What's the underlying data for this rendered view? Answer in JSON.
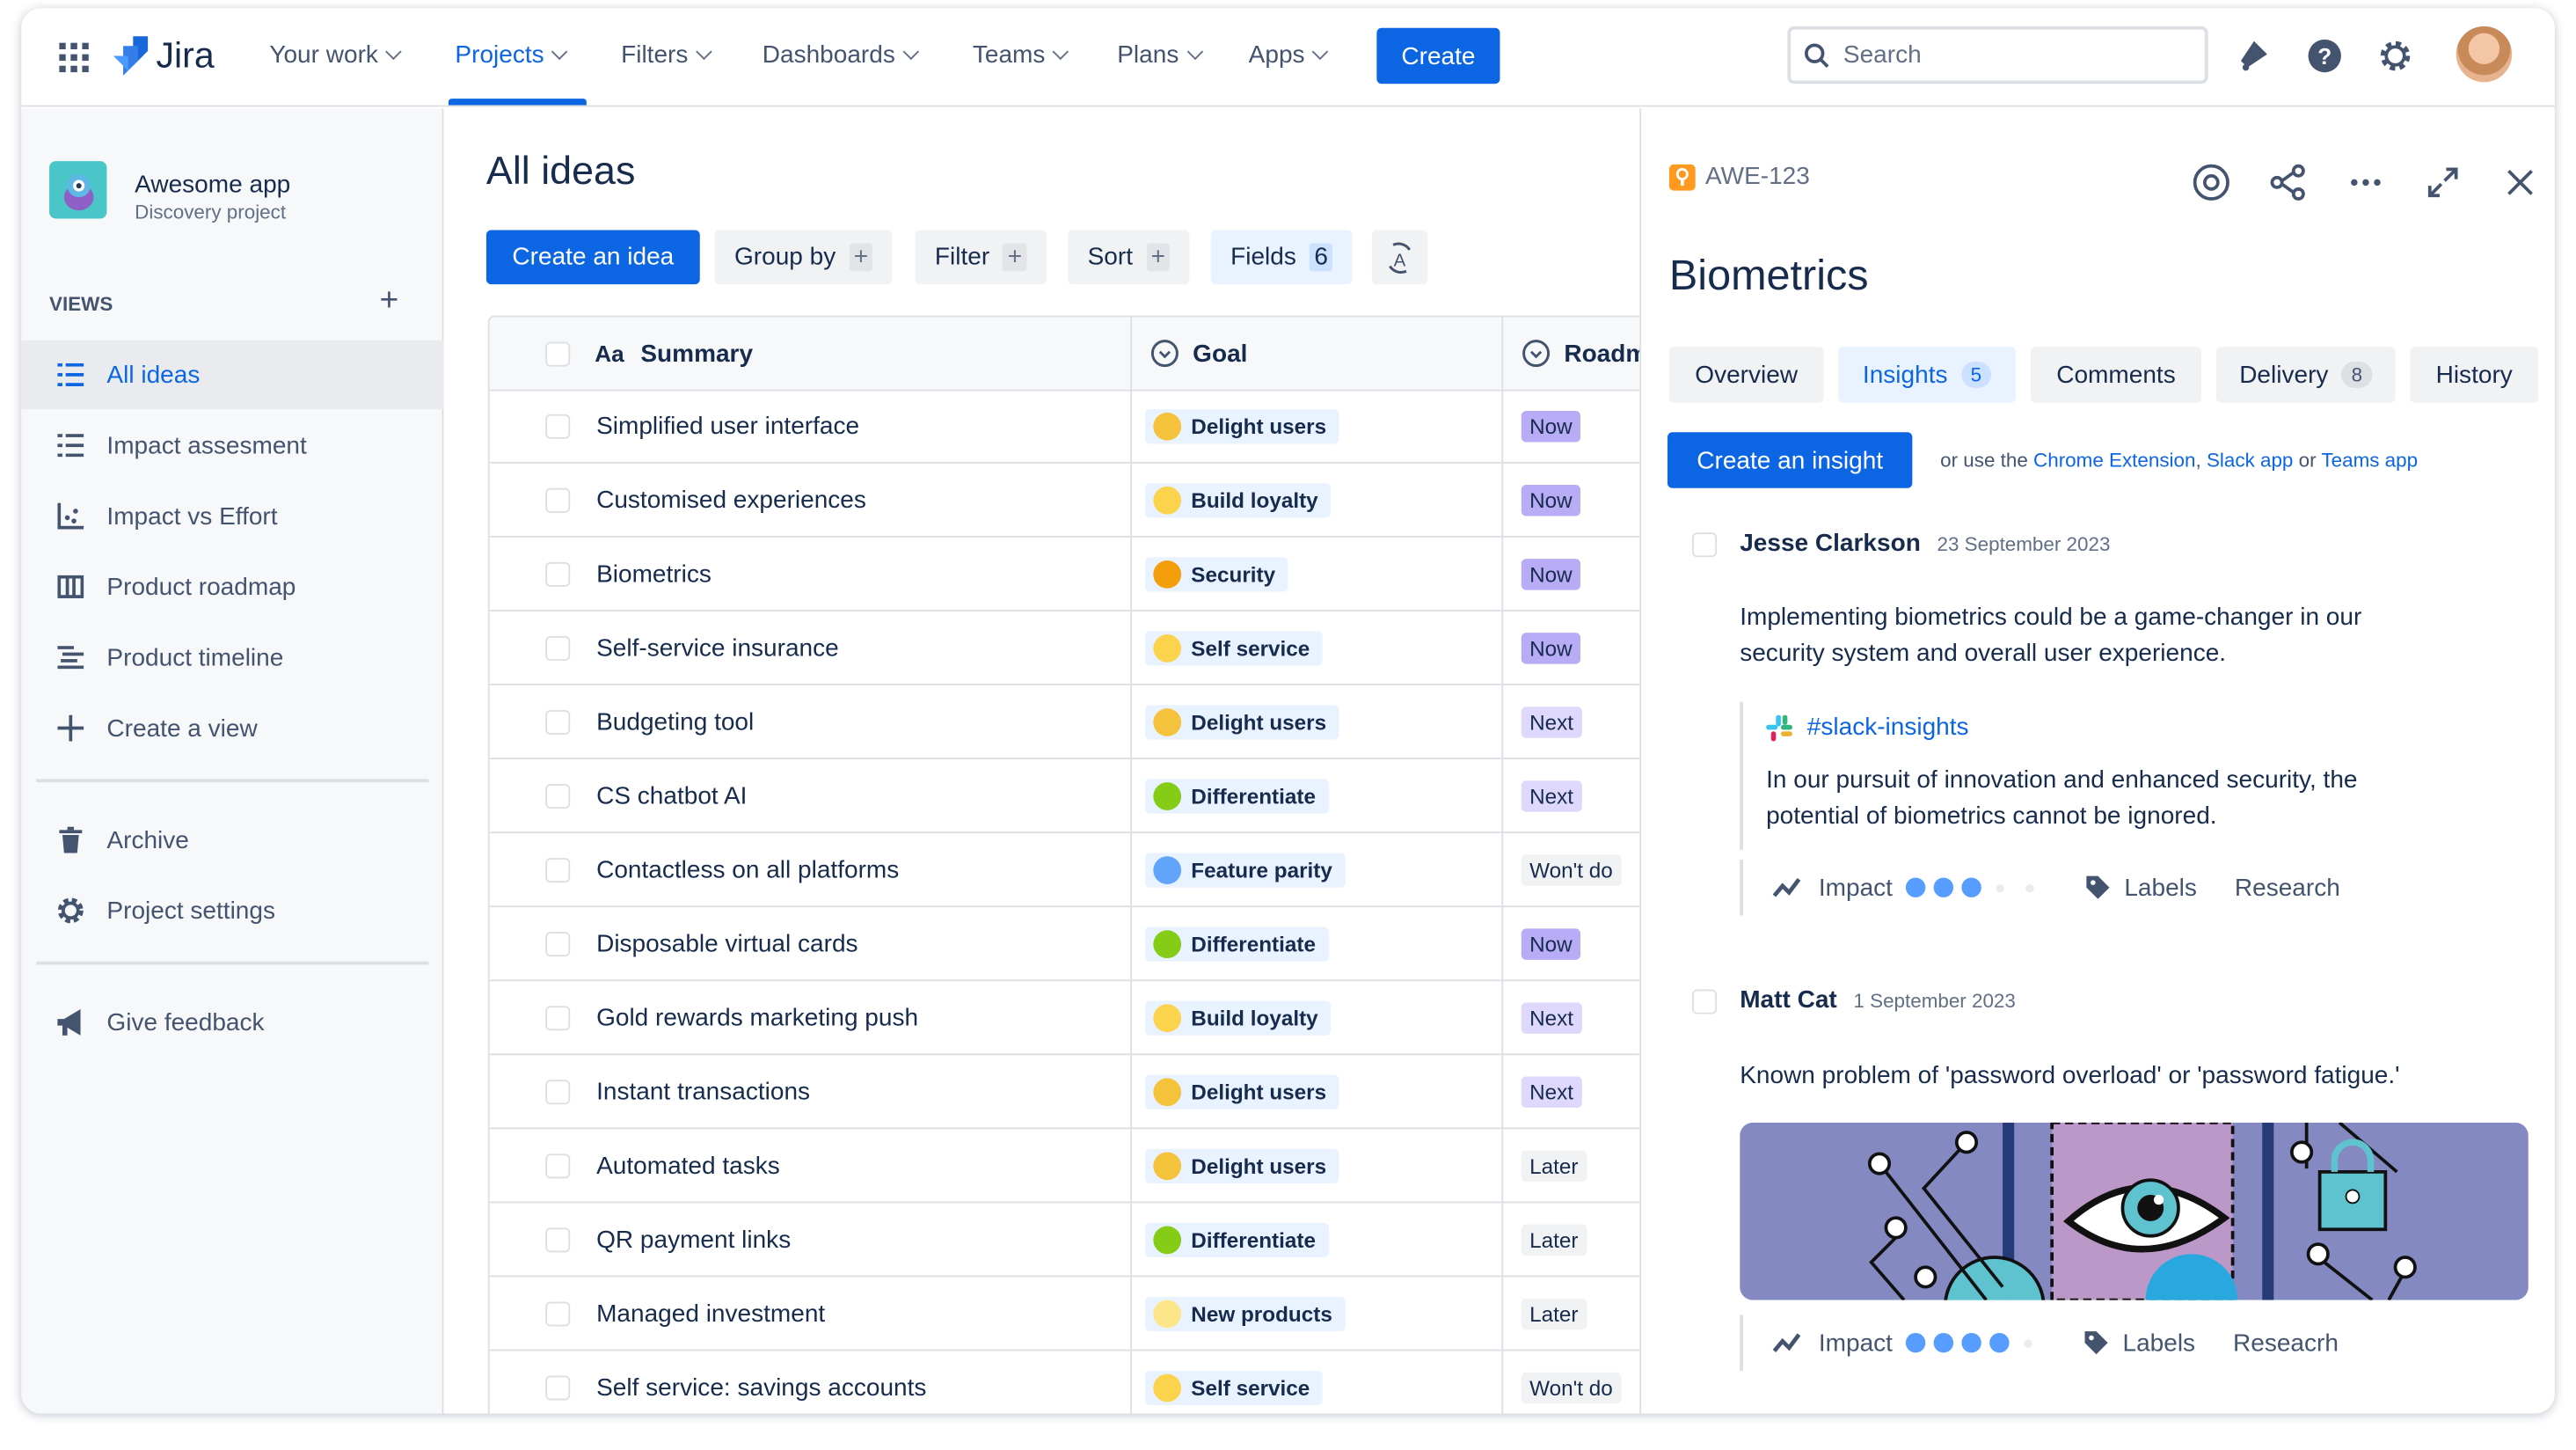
{
  "nav": {
    "app_name": "Jira",
    "items": [
      {
        "label": "Your work"
      },
      {
        "label": "Projects"
      },
      {
        "label": "Filters"
      },
      {
        "label": "Dashboards"
      },
      {
        "label": "Teams"
      },
      {
        "label": "Plans"
      },
      {
        "label": "Apps"
      }
    ],
    "active_item": "Projects",
    "create_label": "Create",
    "search_placeholder": "Search"
  },
  "sidebar": {
    "project_name": "Awesome app",
    "project_type": "Discovery project",
    "views_heading": "VIEWS",
    "views": [
      {
        "label": "All ideas",
        "icon": "list-icon",
        "active": true
      },
      {
        "label": "Impact assesment",
        "icon": "list-icon"
      },
      {
        "label": "Impact vs Effort",
        "icon": "scatter-chart-icon"
      },
      {
        "label": "Product roadmap",
        "icon": "board-icon"
      },
      {
        "label": "Product timeline",
        "icon": "timeline-icon"
      },
      {
        "label": "Create a view",
        "icon": "plus-icon"
      }
    ],
    "archive_label": "Archive",
    "settings_label": "Project settings",
    "feedback_label": "Give feedback"
  },
  "main": {
    "title": "All ideas",
    "toolbar": {
      "create_label": "Create an idea",
      "group_label": "Group by",
      "filter_label": "Filter",
      "sort_label": "Sort",
      "fields_label": "Fields",
      "fields_count": "6"
    },
    "columns": {
      "summary": "Summary",
      "summary_icon": "Aa",
      "goal": "Goal",
      "roadmap": "Roadm"
    },
    "rows": [
      {
        "summary": "Simplified user interface",
        "goal": "Delight users",
        "roadmap": "Now"
      },
      {
        "summary": "Customised experiences",
        "goal": "Build loyalty",
        "roadmap": "Now"
      },
      {
        "summary": "Biometrics",
        "goal": "Security",
        "roadmap": "Now"
      },
      {
        "summary": "Self-service insurance",
        "goal": "Self service",
        "roadmap": "Now"
      },
      {
        "summary": "Budgeting tool",
        "goal": "Delight users",
        "roadmap": "Next"
      },
      {
        "summary": "CS chatbot AI",
        "goal": "Differentiate",
        "roadmap": "Next"
      },
      {
        "summary": "Contactless on all platforms",
        "goal": "Feature parity",
        "roadmap": "Won't do"
      },
      {
        "summary": "Disposable virtual cards",
        "goal": "Differentiate",
        "roadmap": "Now"
      },
      {
        "summary": "Gold rewards marketing push",
        "goal": "Build loyalty",
        "roadmap": "Next"
      },
      {
        "summary": "Instant transactions",
        "goal": "Delight users",
        "roadmap": "Next"
      },
      {
        "summary": "Automated tasks",
        "goal": "Delight users",
        "roadmap": "Later"
      },
      {
        "summary": "QR payment links",
        "goal": "Differentiate",
        "roadmap": "Later"
      },
      {
        "summary": "Managed investment",
        "goal": "New products",
        "roadmap": "Later"
      },
      {
        "summary": "Self service: savings accounts",
        "goal": "Self service",
        "roadmap": "Won't do"
      }
    ],
    "goal_colors": {
      "Delight users": "#f5c33b",
      "Build loyalty": "#fcd34d",
      "Security": "#f59e0b",
      "Self service": "#fcd34d",
      "Differentiate": "#84cc16",
      "Feature parity": "#60a5fa",
      "New products": "#fde68a"
    },
    "roadmap_colors": {
      "Now": "#b8acf6",
      "Next": "#dfd8fd",
      "Later": "#f1f2f4",
      "Won't do": "#f1f2f4"
    }
  },
  "panel": {
    "issue_key": "AWE-123",
    "title": "Biometrics",
    "tabs": [
      {
        "label": "Overview"
      },
      {
        "label": "Insights",
        "count": "5",
        "active": true
      },
      {
        "label": "Comments"
      },
      {
        "label": "Delivery",
        "count": "8"
      },
      {
        "label": "History"
      }
    ],
    "create_insight_label": "Create an insight",
    "hint_prefix": "or use the",
    "hint_link1": "Chrome Extension",
    "hint_sep": ",",
    "hint_link2": "Slack app",
    "hint_or": "or",
    "hint_link3": "Teams app",
    "insights": [
      {
        "author": "Jesse Clarkson",
        "date": "23 September 2023",
        "text": "Implementing biometrics could be a game-changer in our security system and overall user experience.",
        "source": "#slack-insights",
        "quote": "In our pursuit of innovation and enhanced security, the potential of biometrics cannot be ignored.",
        "impact_label": "Impact",
        "impact": 3,
        "impact_max": 5,
        "labels_label": "Labels",
        "label": "Research"
      },
      {
        "author": "Matt Cat",
        "date": "1 September 2023",
        "text": "Known problem of 'password overload' or 'password fatigue.'",
        "impact_label": "Impact",
        "impact": 4,
        "impact_max": 5,
        "labels_label": "Labels",
        "label": "Reseacrh"
      }
    ]
  },
  "colors": {
    "brand": "#0c66e4",
    "text": "#172b4d"
  }
}
